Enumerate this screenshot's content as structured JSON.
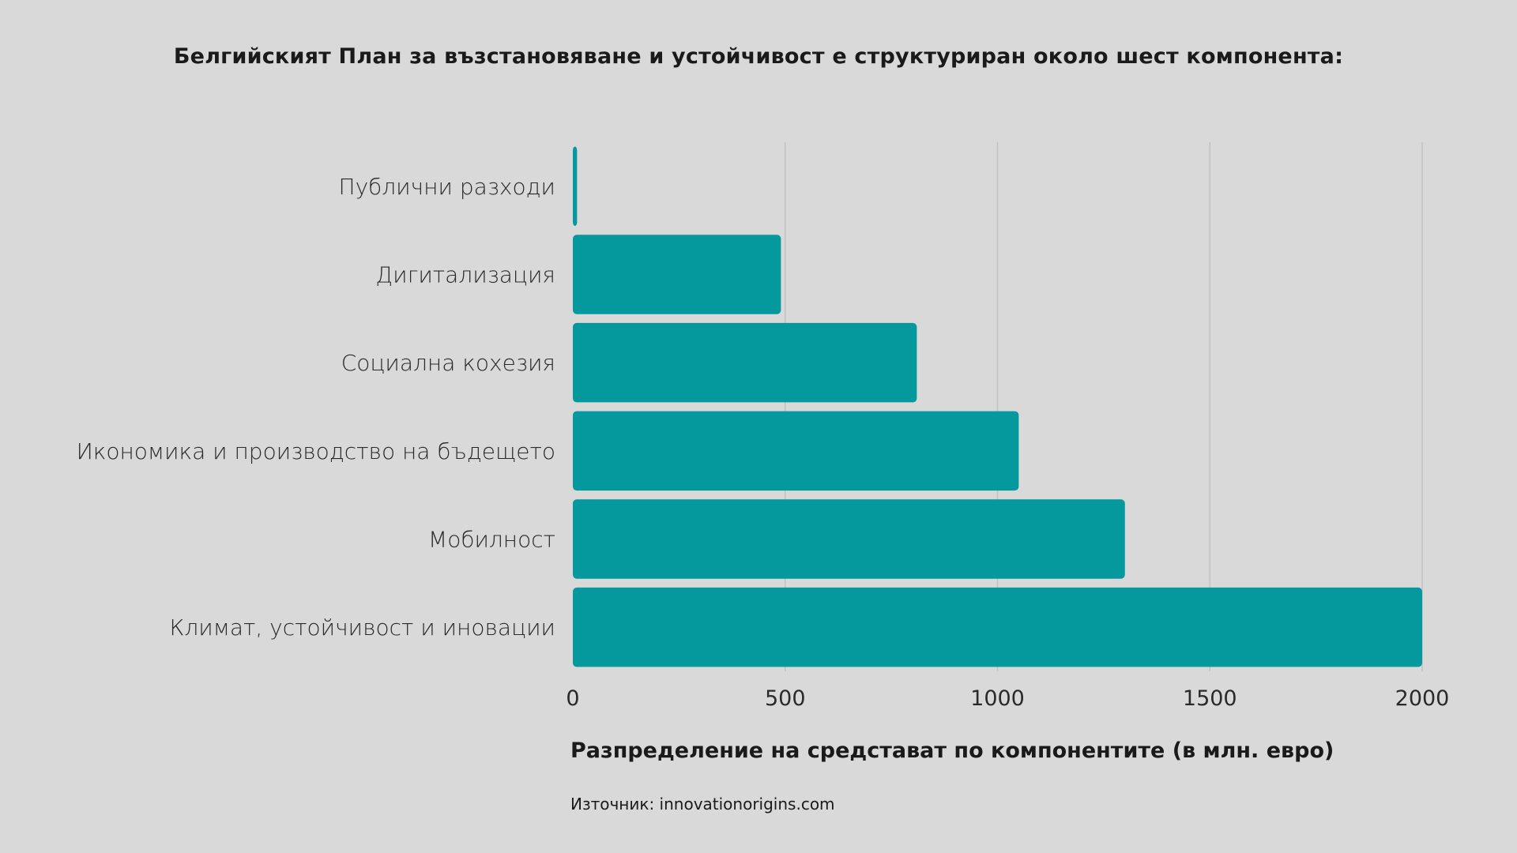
{
  "chart_data": {
    "type": "bar",
    "orientation": "horizontal",
    "title": "Белгийският План за възстановяване и устойчивост е структуриран около шест компонента:",
    "xlabel": "Разпределение на средстават по компонентите (в млн. евро)",
    "ylabel": "",
    "categories": [
      "Публични разходи",
      "Дигитализация",
      "Социална кохезия",
      "Икономика и производство на бъдещето",
      "Мобилност",
      "Климат, устойчивост и иновации"
    ],
    "values": [
      10,
      490,
      810,
      1050,
      1300,
      2000
    ],
    "xlim": [
      0,
      2000
    ],
    "xticks": [
      "0",
      "500",
      "1000",
      "1500",
      "2000"
    ],
    "xtick_values": [
      0,
      500,
      1000,
      1500,
      2000
    ],
    "grid": true,
    "bar_color": "#05989d",
    "grid_color": "#c2c2c2",
    "background_color": "#d9d9d9"
  },
  "source": "Източник: innovationorigins.com"
}
